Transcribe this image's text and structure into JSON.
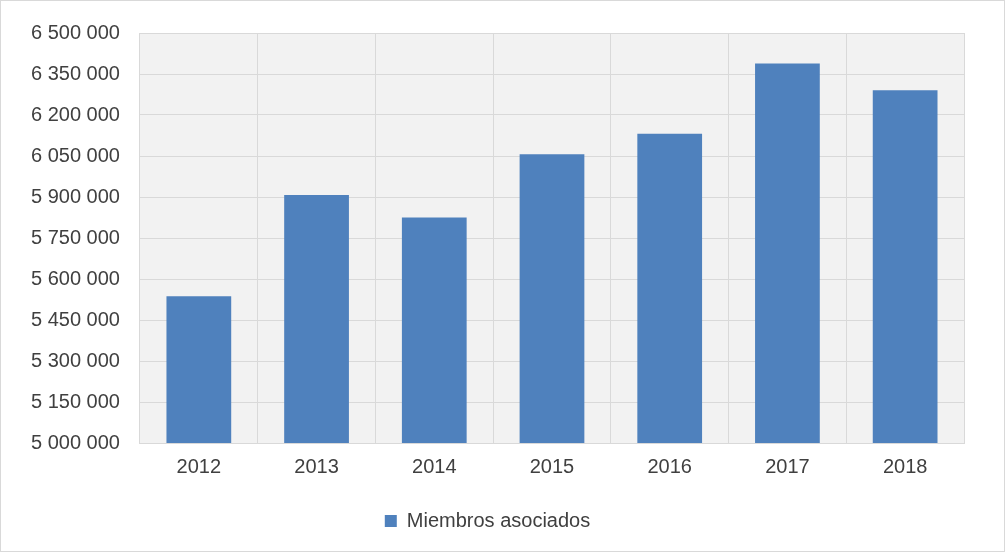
{
  "chart_data": {
    "type": "bar",
    "categories": [
      "2012",
      "2013",
      "2014",
      "2015",
      "2016",
      "2017",
      "2018"
    ],
    "series": [
      {
        "name": "Miembros asociados",
        "color": "#4f81bd",
        "values": [
          5537000,
          5907000,
          5825000,
          6056000,
          6131000,
          6388000,
          6291000
        ]
      }
    ],
    "ylim": [
      5000000,
      6500000
    ],
    "yticks": [
      {
        "value": 5000000,
        "label": "5 000 000"
      },
      {
        "value": 5150000,
        "label": "5 150 000"
      },
      {
        "value": 5300000,
        "label": "5 300 000"
      },
      {
        "value": 5450000,
        "label": "5 450 000"
      },
      {
        "value": 5600000,
        "label": "5 600 000"
      },
      {
        "value": 5750000,
        "label": "5 750 000"
      },
      {
        "value": 5900000,
        "label": "5 900 000"
      },
      {
        "value": 6050000,
        "label": "6 050 000"
      },
      {
        "value": 6200000,
        "label": "6 200 000"
      },
      {
        "value": 6350000,
        "label": "6 350 000"
      },
      {
        "value": 6500000,
        "label": "6 500 000"
      }
    ],
    "grid": true,
    "legend": "bottom"
  }
}
